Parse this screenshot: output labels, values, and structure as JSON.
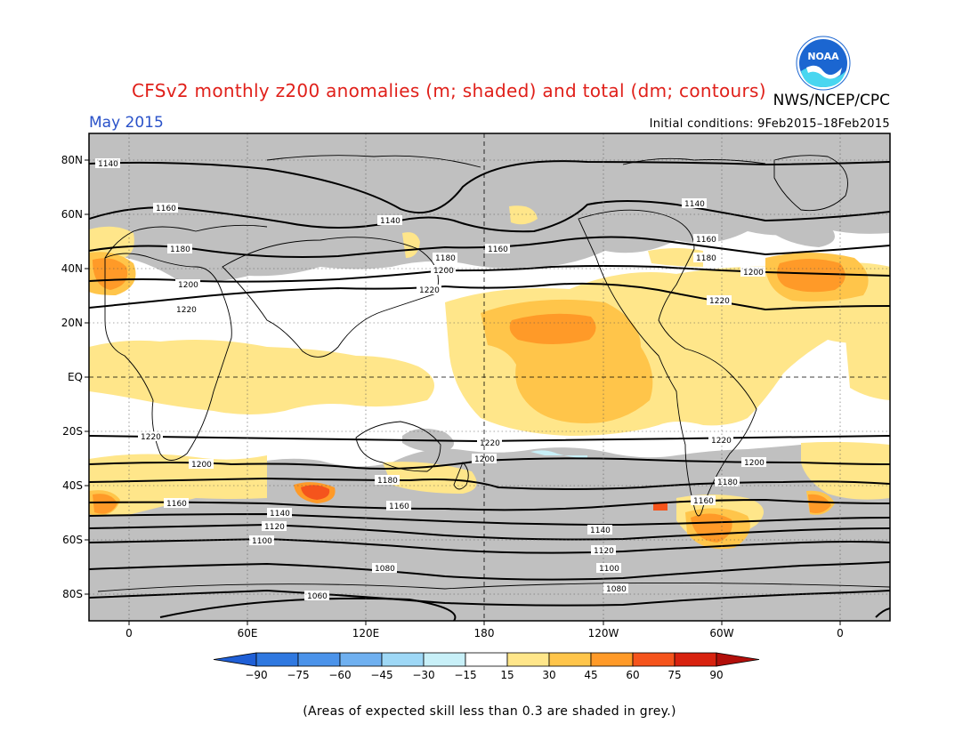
{
  "header": {
    "title": "CFSv2 monthly z200 anomalies (m; shaded) and total (dm; contours)",
    "agency": "NWS/NCEP/CPC",
    "period": "May 2015",
    "initial_conditions": "Initial conditions: 9Feb2015–18Feb2015",
    "logo_text": "NOAA"
  },
  "map": {
    "lat_labels": [
      "80N",
      "60N",
      "40N",
      "20N",
      "EQ",
      "20S",
      "40S",
      "60S",
      "80S"
    ],
    "lon_labels": [
      "0",
      "60E",
      "120E",
      "180",
      "120W",
      "60W",
      "0"
    ],
    "contour_labels": [
      "1140",
      "1160",
      "1180",
      "1200",
      "1220",
      "1120",
      "1100",
      "1080",
      "1060"
    ]
  },
  "colorbar": {
    "ticks": [
      "−90",
      "−75",
      "−60",
      "−45",
      "−30",
      "−15",
      "15",
      "30",
      "45",
      "60",
      "75",
      "90"
    ],
    "colors": [
      "#1f5fd6",
      "#2f78e0",
      "#4b93ea",
      "#6fb0f0",
      "#9ed8f6",
      "#c8f0f8",
      "#ffffff",
      "#ffe68a",
      "#ffc54a",
      "#ff9a28",
      "#f5541c",
      "#d8220f",
      "#b20f0a"
    ]
  },
  "legend_colors": {
    "grey_low_skill": "#c0c0c0",
    "land_outline": "#000000"
  },
  "footnote": "(Areas of expected skill less than 0.3 are shaded in grey.)"
}
